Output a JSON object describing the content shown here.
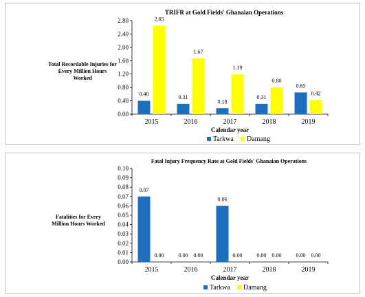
{
  "chart_data": [
    {
      "type": "bar",
      "title": "TRIFR at Gold Fields' Ghanaian Operations",
      "ylabel": "Total Recordable Injuries for Every Million Hours Worked",
      "xlabel": "Calendar year",
      "categories": [
        "2015",
        "2016",
        "2017",
        "2018",
        "2019"
      ],
      "series": [
        {
          "name": "Tarkwa",
          "color": "#1f6fbf",
          "values": [
            0.4,
            0.31,
            0.18,
            0.31,
            0.65
          ],
          "labels": [
            "0.40",
            "0.31",
            "0.18",
            "0.31",
            "0.65"
          ]
        },
        {
          "name": "Damang",
          "color": "#ffff00",
          "values": [
            2.65,
            1.67,
            1.19,
            0.8,
            0.42
          ],
          "labels": [
            "2.65",
            "1.67",
            "1.19",
            "0.80",
            "0.42"
          ]
        }
      ],
      "ylim": [
        0,
        2.8
      ],
      "yticks": [
        "0.00",
        "0.40",
        "0.80",
        "1.20",
        "1.60",
        "2.00",
        "2.40",
        "2.80"
      ],
      "grid": false,
      "legend": "bottom-center"
    },
    {
      "type": "bar",
      "title": "Fatal Injury Frequency Rate at Gold Fields' Ghanaian Operations",
      "ylabel": "Fatalities for Every Million Hours Worked",
      "xlabel": "Calendar year",
      "categories": [
        "2015",
        "2016",
        "2017",
        "2018",
        "2019"
      ],
      "series": [
        {
          "name": "Tarkwa",
          "color": "#1f6fbf",
          "values": [
            0.07,
            0.0,
            0.06,
            0.0,
            0.0
          ],
          "labels": [
            "0.07",
            "0.00",
            "0.06",
            "0.00",
            "0.00"
          ]
        },
        {
          "name": "Damang",
          "color": "#ffff00",
          "values": [
            0.0,
            0.0,
            0.0,
            0.0,
            0.0
          ],
          "labels": [
            "0.00",
            "0.00",
            "0.00",
            "0.00",
            "0.00"
          ]
        }
      ],
      "ylim": [
        0,
        0.1
      ],
      "yticks": [
        "0.00",
        "0.01",
        "0.02",
        "0.03",
        "0.04",
        "0.05",
        "0.06",
        "0.07",
        "0.08",
        "0.09",
        "0.10"
      ],
      "grid": false,
      "legend": "bottom-center"
    }
  ]
}
